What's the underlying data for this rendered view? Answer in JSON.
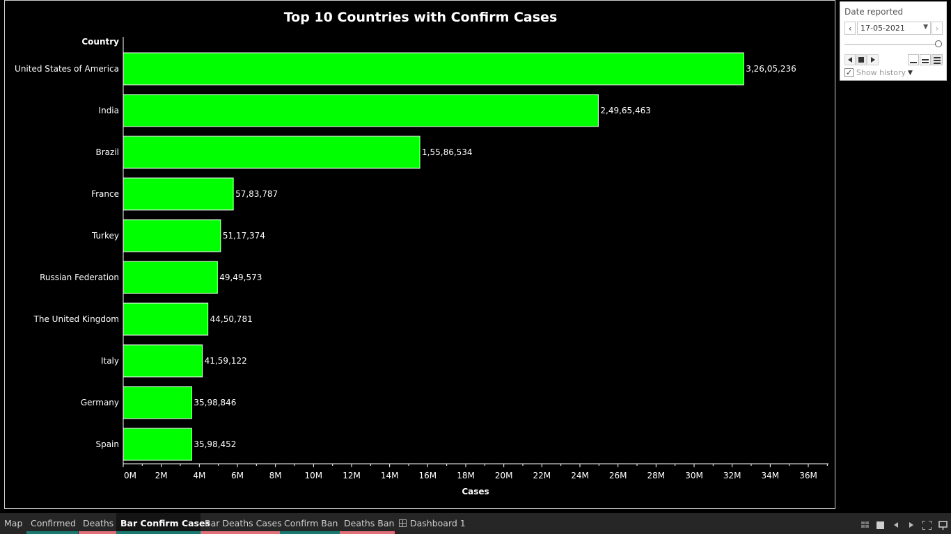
{
  "chart_data": {
    "type": "bar",
    "orientation": "horizontal",
    "title": "Top 10 Countries with Confirm Cases",
    "xlabel": "Cases",
    "ylabel": "Country",
    "categories": [
      "United States of America",
      "India",
      "Brazil",
      "France",
      "Turkey",
      "Russian Federation",
      "The United Kingdom",
      "Italy",
      "Germany",
      "Spain"
    ],
    "values": [
      32605236,
      24965463,
      15586534,
      5783787,
      5117374,
      4949573,
      4450781,
      4159122,
      3598846,
      3598452
    ],
    "value_labels": [
      "3,26,05,236",
      "2,49,65,463",
      "1,55,86,534",
      "57,83,787",
      "51,17,374",
      "49,49,573",
      "44,50,781",
      "41,59,122",
      "35,98,846",
      "35,98,452"
    ],
    "xlim": [
      0,
      37000000
    ],
    "x_ticks": [
      0,
      2000000,
      4000000,
      6000000,
      8000000,
      10000000,
      12000000,
      14000000,
      16000000,
      18000000,
      20000000,
      22000000,
      24000000,
      26000000,
      28000000,
      30000000,
      32000000,
      34000000,
      36000000
    ],
    "x_tick_labels": [
      "0M",
      "2M",
      "4M",
      "6M",
      "8M",
      "10M",
      "12M",
      "14M",
      "16M",
      "18M",
      "20M",
      "22M",
      "24M",
      "26M",
      "28M",
      "30M",
      "32M",
      "34M",
      "36M"
    ],
    "bar_color": "#00ff00",
    "bar_border": "#ffffff",
    "background": "#000000",
    "grid": false
  },
  "filter": {
    "title": "Date reported",
    "date_value": "17-05-2021",
    "prev_icon": "chevron-left-icon",
    "next_icon": "chevron-right-icon",
    "slider_position": 1.0,
    "show_history_label": "Show history",
    "show_history_checked": true
  },
  "tabs": [
    {
      "label": "Map",
      "underline": ""
    },
    {
      "label": "Confirmed",
      "underline": "#1a7a72"
    },
    {
      "label": "Deaths",
      "underline": "#e0707a"
    },
    {
      "label": "Bar Confirm Cases",
      "underline": "#1a7a72",
      "active": true
    },
    {
      "label": "Bar Deaths Cases",
      "underline": "#e0707a"
    },
    {
      "label": "Confirm Ban",
      "underline": "#1a7a72"
    },
    {
      "label": "Deaths Ban",
      "underline": "#e0707a"
    },
    {
      "label": "Dashboard 1",
      "underline": "",
      "icon": "dashboard-grid-icon"
    }
  ],
  "status_buttons": [
    "tile-view-icon",
    "presentation-icon",
    "prev-sheet-icon",
    "next-sheet-icon",
    "fullscreen-icon",
    "device-preview-icon"
  ]
}
